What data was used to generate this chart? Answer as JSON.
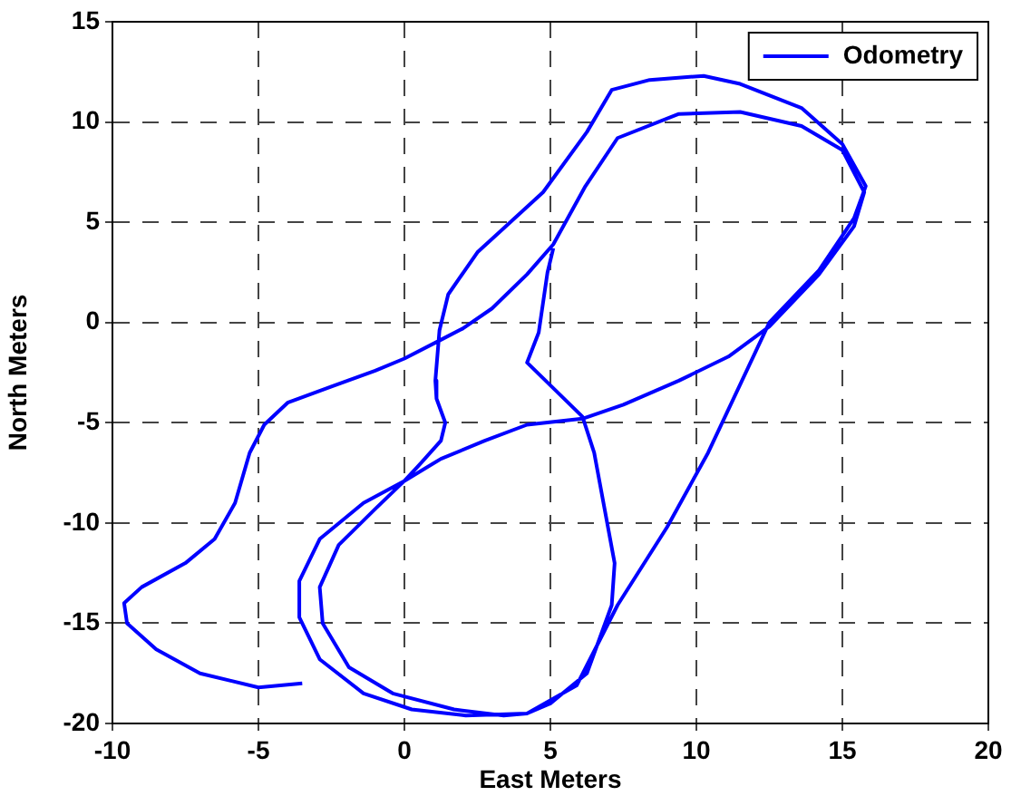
{
  "chart_data": {
    "type": "line",
    "xlabel": "East Meters",
    "ylabel": "North Meters",
    "xlim": [
      -10,
      20
    ],
    "xticks": [
      -10,
      -5,
      0,
      5,
      10,
      15,
      20
    ],
    "ylim": [
      -20,
      15
    ],
    "yticks": [
      -20,
      -15,
      -10,
      -5,
      0,
      5,
      10,
      15
    ],
    "grid": true,
    "legend": "top right",
    "marker": "none",
    "line_style": "solid",
    "series": [
      {
        "name": "Odometry",
        "color": "#0000ff",
        "x": [
          -3.5,
          -5,
          -7,
          -8.5,
          -9.5,
          -9.6,
          -9,
          -7.5,
          -6.5,
          -5.8,
          -5.3,
          -4.8,
          -4,
          -2.5,
          -1,
          0,
          1.2,
          2,
          3,
          4.2,
          5.1,
          6.2,
          7.3,
          9.4,
          11.5,
          13.6,
          15,
          15.75,
          15.4,
          14.2,
          12.5,
          11.1,
          9.4,
          7.5,
          6.1,
          4.2,
          2.75,
          1.25,
          0,
          -1,
          -2.25,
          -2.9,
          -2.8,
          -1.9,
          -0.4,
          1.7,
          3.4,
          4.2,
          5.9,
          7.3,
          9,
          10.4,
          12.5,
          14.2,
          15.4,
          15.8,
          15,
          13.6,
          11.5,
          10.25,
          8.4,
          7.1,
          6.25,
          4.75,
          2.5,
          1.5,
          1.2,
          1.06,
          1.1,
          1.4,
          1.25,
          0.45,
          0,
          -1.4,
          -2.9,
          -3.6,
          -3.6,
          -2.9,
          -1.4,
          0.25,
          2.1,
          4.2,
          5,
          6.25,
          7.1,
          7.2,
          6.5,
          6.1,
          4.2,
          4.6,
          4.9,
          5.1
        ],
        "values": [
          -18,
          -18.2,
          -17.5,
          -16.3,
          -15,
          -14,
          -13.2,
          -12,
          -10.8,
          -9,
          -6.5,
          -5.1,
          -4,
          -3.2,
          -2.4,
          -1.8,
          -0.9,
          -0.3,
          0.7,
          2.4,
          3.9,
          6.8,
          9.2,
          10.4,
          10.5,
          9.8,
          8.6,
          6.5,
          4.8,
          2.4,
          -0.2,
          -1.7,
          -2.9,
          -4.1,
          -4.8,
          -5.1,
          -5.9,
          -6.8,
          -7.9,
          -9.3,
          -11.1,
          -13.2,
          -15,
          -17.2,
          -18.5,
          -19.3,
          -19.6,
          -19.5,
          -18.1,
          -14.1,
          -10.2,
          -6.5,
          0,
          2.6,
          5.2,
          6.8,
          8.9,
          10.7,
          11.9,
          12.3,
          12.1,
          11.6,
          9.5,
          6.5,
          3.5,
          1.4,
          -0.4,
          -2.9,
          -3.8,
          -5,
          -5.9,
          -7.2,
          -7.9,
          -9,
          -10.8,
          -12.9,
          -14.7,
          -16.8,
          -18.5,
          -19.3,
          -19.6,
          -19.5,
          -19,
          -17.5,
          -14.1,
          -12,
          -6.5,
          -4.7,
          -2,
          -0.5,
          2.5,
          3.7
        ]
      }
    ]
  }
}
